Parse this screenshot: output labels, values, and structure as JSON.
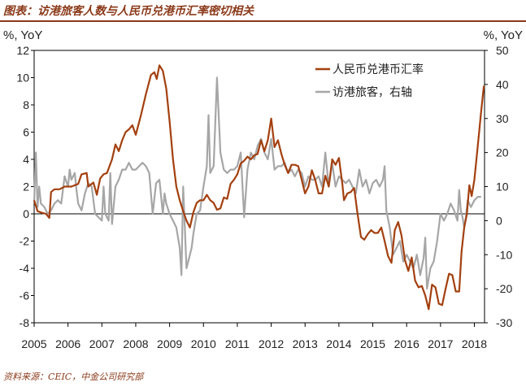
{
  "header": {
    "title": "图表：访港旅客人数与人民币兑港币汇率密切相关"
  },
  "footer": {
    "source": "资料来源：CEIC，中金公司研究部"
  },
  "colors": {
    "accent": "#8b3a1a",
    "rmb_line": "#a3400f",
    "visitor_line": "#a6a6a6"
  },
  "chart_data": {
    "type": "line",
    "title": "",
    "left_unit": "%, YoY",
    "right_unit": "%, YoY",
    "x_range": [
      2005.0,
      2018.3
    ],
    "x_ticks": [
      "2005",
      "2006",
      "2007",
      "2008",
      "2009",
      "2010",
      "2011",
      "2012",
      "2013",
      "2014",
      "2015",
      "2016",
      "2017",
      "2018"
    ],
    "y_left": {
      "lim": [
        -8,
        12
      ],
      "ticks": [
        "12",
        "10",
        "8",
        "6",
        "4",
        "2",
        "0",
        "-2",
        "-4",
        "-6",
        "-8"
      ]
    },
    "y_right": {
      "lim": [
        -30,
        50
      ],
      "ticks": [
        "50",
        "40",
        "30",
        "20",
        "10",
        "0",
        "-10",
        "-20",
        "-30"
      ]
    },
    "legend_position": "top-right",
    "series": [
      {
        "name": "人民币兑港币汇率",
        "axis": "left",
        "points": [
          [
            2005.0,
            1.0
          ],
          [
            2005.1,
            0.2
          ],
          [
            2005.2,
            0.1
          ],
          [
            2005.35,
            0.0
          ],
          [
            2005.45,
            -0.3
          ],
          [
            2005.5,
            1.6
          ],
          [
            2005.6,
            1.8
          ],
          [
            2005.75,
            1.8
          ],
          [
            2005.9,
            2.0
          ],
          [
            2006.1,
            2.0
          ],
          [
            2006.3,
            2.2
          ],
          [
            2006.4,
            2.9
          ],
          [
            2006.55,
            3.0
          ],
          [
            2006.6,
            2.0
          ],
          [
            2006.75,
            2.3
          ],
          [
            2006.85,
            1.4
          ],
          [
            2006.95,
            2.6
          ],
          [
            2007.05,
            2.9
          ],
          [
            2007.15,
            3.0
          ],
          [
            2007.3,
            4.0
          ],
          [
            2007.4,
            5.1
          ],
          [
            2007.5,
            4.6
          ],
          [
            2007.6,
            5.4
          ],
          [
            2007.7,
            6.0
          ],
          [
            2007.8,
            6.2
          ],
          [
            2007.9,
            6.5
          ],
          [
            2008.0,
            5.8
          ],
          [
            2008.15,
            7.2
          ],
          [
            2008.3,
            8.8
          ],
          [
            2008.45,
            10.2
          ],
          [
            2008.55,
            10.4
          ],
          [
            2008.62,
            9.9
          ],
          [
            2008.7,
            10.9
          ],
          [
            2008.8,
            10.5
          ],
          [
            2008.9,
            9.2
          ],
          [
            2009.0,
            6.8
          ],
          [
            2009.1,
            4.0
          ],
          [
            2009.2,
            2.0
          ],
          [
            2009.3,
            1.0
          ],
          [
            2009.4,
            0.2
          ],
          [
            2009.5,
            -0.5
          ],
          [
            2009.6,
            -1.0
          ],
          [
            2009.7,
            0.1
          ],
          [
            2009.8,
            0.8
          ],
          [
            2009.9,
            1.0
          ],
          [
            2010.0,
            1.0
          ],
          [
            2010.1,
            1.4
          ],
          [
            2010.2,
            1.0
          ],
          [
            2010.3,
            0.8
          ],
          [
            2010.4,
            0.3
          ],
          [
            2010.5,
            0.4
          ],
          [
            2010.6,
            1.2
          ],
          [
            2010.7,
            1.1
          ],
          [
            2010.8,
            2.2
          ],
          [
            2010.9,
            2.5
          ],
          [
            2011.0,
            2.9
          ],
          [
            2011.1,
            3.7
          ],
          [
            2011.2,
            3.9
          ],
          [
            2011.3,
            4.2
          ],
          [
            2011.4,
            4.0
          ],
          [
            2011.5,
            4.3
          ],
          [
            2011.6,
            4.4
          ],
          [
            2011.7,
            5.4
          ],
          [
            2011.8,
            4.6
          ],
          [
            2011.9,
            5.4
          ],
          [
            2012.0,
            7.0
          ],
          [
            2012.1,
            4.9
          ],
          [
            2012.2,
            5.4
          ],
          [
            2012.3,
            4.4
          ],
          [
            2012.4,
            3.6
          ],
          [
            2012.5,
            3.0
          ],
          [
            2012.6,
            3.6
          ],
          [
            2012.7,
            3.6
          ],
          [
            2012.8,
            3.5
          ],
          [
            2012.9,
            2.5
          ],
          [
            2013.0,
            1.5
          ],
          [
            2013.1,
            2.0
          ],
          [
            2013.2,
            3.2
          ],
          [
            2013.3,
            2.5
          ],
          [
            2013.4,
            1.5
          ],
          [
            2013.5,
            1.5
          ],
          [
            2013.6,
            2.8
          ],
          [
            2013.7,
            2.0
          ],
          [
            2013.8,
            4.0
          ],
          [
            2013.9,
            3.6
          ],
          [
            2014.0,
            4.1
          ],
          [
            2014.1,
            2.2
          ],
          [
            2014.15,
            1.0
          ],
          [
            2014.25,
            1.5
          ],
          [
            2014.35,
            1.6
          ],
          [
            2014.45,
            1.9
          ],
          [
            2014.55,
            0.0
          ],
          [
            2014.65,
            -1.7
          ],
          [
            2014.75,
            -1.9
          ],
          [
            2014.85,
            -1.5
          ],
          [
            2014.95,
            -1.2
          ],
          [
            2015.05,
            -1.4
          ],
          [
            2015.15,
            -1.4
          ],
          [
            2015.25,
            -1.0
          ],
          [
            2015.35,
            -2.0
          ],
          [
            2015.45,
            -3.1
          ],
          [
            2015.55,
            -3.6
          ],
          [
            2015.65,
            -1.2
          ],
          [
            2015.75,
            -0.6
          ],
          [
            2015.85,
            -1.6
          ],
          [
            2015.95,
            -3.4
          ],
          [
            2016.05,
            -4.2
          ],
          [
            2016.15,
            -3.2
          ],
          [
            2016.25,
            -4.9
          ],
          [
            2016.35,
            -5.4
          ],
          [
            2016.45,
            -5.3
          ],
          [
            2016.55,
            -6.0
          ],
          [
            2016.65,
            -7.0
          ],
          [
            2016.75,
            -5.2
          ],
          [
            2016.85,
            -5.4
          ],
          [
            2016.95,
            -6.6
          ],
          [
            2017.05,
            -6.7
          ],
          [
            2017.15,
            -5.5
          ],
          [
            2017.25,
            -4.4
          ],
          [
            2017.35,
            -4.5
          ],
          [
            2017.45,
            -5.7
          ],
          [
            2017.55,
            -5.7
          ],
          [
            2017.62,
            -2.8
          ],
          [
            2017.7,
            -1.0
          ],
          [
            2017.78,
            0.0
          ],
          [
            2017.85,
            2.1
          ],
          [
            2017.92,
            1.3
          ],
          [
            2018.0,
            2.5
          ],
          [
            2018.1,
            5.0
          ],
          [
            2018.2,
            7.5
          ],
          [
            2018.28,
            9.4
          ]
        ]
      },
      {
        "name": "访港旅客，右轴",
        "axis": "right",
        "points": [
          [
            2005.0,
            5
          ],
          [
            2005.05,
            20
          ],
          [
            2005.1,
            4
          ],
          [
            2005.15,
            10
          ],
          [
            2005.2,
            5
          ],
          [
            2005.3,
            4
          ],
          [
            2005.4,
            2
          ],
          [
            2005.5,
            3
          ],
          [
            2005.6,
            5
          ],
          [
            2005.7,
            6
          ],
          [
            2005.8,
            5
          ],
          [
            2005.9,
            13
          ],
          [
            2006.0,
            10
          ],
          [
            2006.05,
            15
          ],
          [
            2006.1,
            12
          ],
          [
            2006.2,
            14
          ],
          [
            2006.25,
            9
          ],
          [
            2006.3,
            5
          ],
          [
            2006.4,
            3
          ],
          [
            2006.5,
            8
          ],
          [
            2006.6,
            11
          ],
          [
            2006.7,
            10
          ],
          [
            2006.8,
            2
          ],
          [
            2006.9,
            1
          ],
          [
            2007.0,
            0
          ],
          [
            2007.05,
            10
          ],
          [
            2007.1,
            2
          ],
          [
            2007.2,
            0
          ],
          [
            2007.25,
            14
          ],
          [
            2007.3,
            -1
          ],
          [
            2007.4,
            10
          ],
          [
            2007.5,
            12
          ],
          [
            2007.6,
            15
          ],
          [
            2007.7,
            15
          ],
          [
            2007.8,
            17
          ],
          [
            2007.9,
            15
          ],
          [
            2008.0,
            15
          ],
          [
            2008.1,
            16
          ],
          [
            2008.2,
            17
          ],
          [
            2008.3,
            16
          ],
          [
            2008.4,
            14
          ],
          [
            2008.5,
            2
          ],
          [
            2008.6,
            11
          ],
          [
            2008.7,
            12
          ],
          [
            2008.8,
            2
          ],
          [
            2008.85,
            8
          ],
          [
            2008.9,
            5
          ],
          [
            2009.0,
            2
          ],
          [
            2009.1,
            0
          ],
          [
            2009.2,
            -2
          ],
          [
            2009.3,
            -8
          ],
          [
            2009.35,
            -16
          ],
          [
            2009.4,
            10
          ],
          [
            2009.5,
            -14
          ],
          [
            2009.6,
            -10
          ],
          [
            2009.65,
            -8
          ],
          [
            2009.7,
            -4
          ],
          [
            2009.8,
            2
          ],
          [
            2009.9,
            3
          ],
          [
            2010.0,
            10
          ],
          [
            2010.1,
            16
          ],
          [
            2010.15,
            31
          ],
          [
            2010.2,
            14
          ],
          [
            2010.3,
            16
          ],
          [
            2010.4,
            42
          ],
          [
            2010.5,
            20
          ],
          [
            2010.6,
            15
          ],
          [
            2010.7,
            14
          ],
          [
            2010.8,
            15
          ],
          [
            2010.9,
            15
          ],
          [
            2011.0,
            16
          ],
          [
            2011.1,
            20
          ],
          [
            2011.2,
            1
          ],
          [
            2011.3,
            15
          ],
          [
            2011.4,
            20
          ],
          [
            2011.5,
            18
          ],
          [
            2011.6,
            22
          ],
          [
            2011.7,
            24
          ],
          [
            2011.8,
            20
          ],
          [
            2011.9,
            18
          ],
          [
            2012.0,
            24
          ],
          [
            2012.1,
            15
          ],
          [
            2012.2,
            16
          ],
          [
            2012.3,
            16
          ],
          [
            2012.4,
            17
          ],
          [
            2012.5,
            14
          ],
          [
            2012.6,
            15
          ],
          [
            2012.7,
            13
          ],
          [
            2012.8,
            15
          ],
          [
            2012.9,
            14
          ],
          [
            2013.0,
            10
          ],
          [
            2013.1,
            13
          ],
          [
            2013.2,
            12
          ],
          [
            2013.3,
            12
          ],
          [
            2013.4,
            13
          ],
          [
            2013.5,
            10
          ],
          [
            2013.6,
            20
          ],
          [
            2013.7,
            10
          ],
          [
            2013.8,
            17
          ],
          [
            2013.9,
            10
          ],
          [
            2014.0,
            13
          ],
          [
            2014.1,
            12
          ],
          [
            2014.2,
            11
          ],
          [
            2014.3,
            12
          ],
          [
            2014.4,
            10
          ],
          [
            2014.5,
            8
          ],
          [
            2014.6,
            15
          ],
          [
            2014.7,
            10
          ],
          [
            2014.8,
            12
          ],
          [
            2014.9,
            8
          ],
          [
            2015.0,
            11
          ],
          [
            2015.1,
            12
          ],
          [
            2015.2,
            10
          ],
          [
            2015.3,
            12
          ],
          [
            2015.35,
            16
          ],
          [
            2015.4,
            3
          ],
          [
            2015.5,
            -2
          ],
          [
            2015.6,
            -10
          ],
          [
            2015.7,
            -8
          ],
          [
            2015.8,
            -6
          ],
          [
            2015.9,
            -12
          ],
          [
            2016.0,
            -10
          ],
          [
            2016.1,
            -12
          ],
          [
            2016.2,
            -14
          ],
          [
            2016.3,
            -10
          ],
          [
            2016.4,
            -16
          ],
          [
            2016.5,
            -11
          ],
          [
            2016.55,
            -5
          ],
          [
            2016.6,
            -20
          ],
          [
            2016.7,
            -14
          ],
          [
            2016.8,
            -12
          ],
          [
            2016.9,
            -6
          ],
          [
            2017.0,
            2
          ],
          [
            2017.1,
            0
          ],
          [
            2017.2,
            2
          ],
          [
            2017.3,
            5
          ],
          [
            2017.4,
            3
          ],
          [
            2017.5,
            0
          ],
          [
            2017.55,
            9
          ],
          [
            2017.6,
            3
          ],
          [
            2017.65,
            1
          ],
          [
            2017.7,
            -2
          ],
          [
            2017.75,
            1
          ],
          [
            2017.8,
            6
          ],
          [
            2017.9,
            4
          ],
          [
            2018.0,
            6
          ],
          [
            2018.1,
            7
          ],
          [
            2018.2,
            7
          ]
        ]
      }
    ]
  }
}
